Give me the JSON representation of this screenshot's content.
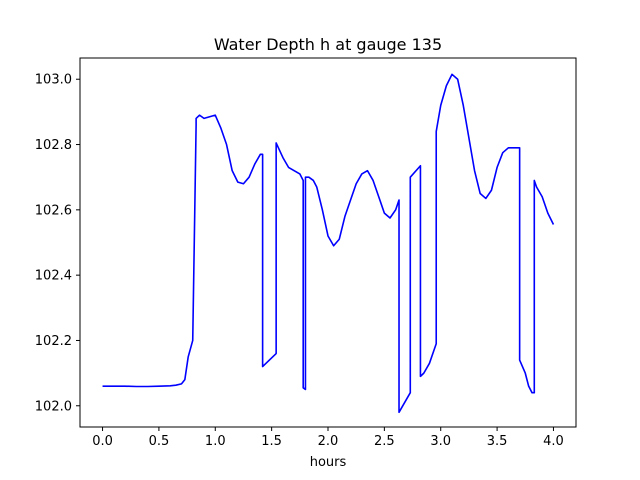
{
  "chart_data": {
    "type": "line",
    "title": "Water Depth h at gauge 135",
    "xlabel": "hours",
    "ylabel": "",
    "xlim": [
      -0.2,
      4.2
    ],
    "ylim": [
      101.935,
      103.065
    ],
    "xticks": [
      0.0,
      0.5,
      1.0,
      1.5,
      2.0,
      2.5,
      3.0,
      3.5,
      4.0
    ],
    "xtick_labels": [
      "0.0",
      "0.5",
      "1.0",
      "1.5",
      "2.0",
      "2.5",
      "3.0",
      "3.5",
      "4.0"
    ],
    "yticks": [
      102.0,
      102.2,
      102.4,
      102.6,
      102.8,
      103.0
    ],
    "ytick_labels": [
      "102.0",
      "102.2",
      "102.4",
      "102.6",
      "102.8",
      "103.0"
    ],
    "grid": false,
    "line_color": "#0000ff",
    "series": [
      {
        "x": [
          0.0,
          0.2,
          0.3,
          0.4,
          0.5,
          0.6,
          0.65,
          0.7,
          0.73,
          0.76,
          0.8,
          0.83,
          0.83,
          0.86,
          0.9,
          0.95,
          1.0,
          1.05,
          1.1,
          1.15,
          1.2,
          1.25,
          1.3,
          1.35,
          1.4,
          1.42,
          1.42,
          1.54,
          1.54,
          1.6,
          1.65,
          1.7,
          1.75,
          1.78,
          1.78,
          1.8,
          1.8,
          1.83,
          1.87,
          1.9,
          1.95,
          2.0,
          2.05,
          2.1,
          2.15,
          2.2,
          2.25,
          2.3,
          2.35,
          2.4,
          2.45,
          2.5,
          2.55,
          2.6,
          2.63,
          2.63,
          2.73,
          2.73,
          2.82,
          2.82,
          2.85,
          2.9,
          2.94,
          2.96,
          2.96,
          3.0,
          3.05,
          3.1,
          3.15,
          3.2,
          3.25,
          3.3,
          3.35,
          3.4,
          3.45,
          3.5,
          3.55,
          3.6,
          3.65,
          3.7,
          3.7,
          3.75,
          3.78,
          3.81,
          3.83,
          3.83,
          3.85,
          3.9,
          3.95,
          4.0
        ],
        "y": [
          102.06,
          102.06,
          102.059,
          102.059,
          102.06,
          102.061,
          102.063,
          102.067,
          102.08,
          102.15,
          102.2,
          102.86,
          102.88,
          102.89,
          102.88,
          102.885,
          102.89,
          102.85,
          102.8,
          102.72,
          102.685,
          102.68,
          102.7,
          102.74,
          102.77,
          102.77,
          102.12,
          102.16,
          102.805,
          102.76,
          102.73,
          102.72,
          102.71,
          102.69,
          102.055,
          102.05,
          102.7,
          102.7,
          102.69,
          102.67,
          102.6,
          102.52,
          102.49,
          102.51,
          102.58,
          102.63,
          102.68,
          102.71,
          102.72,
          102.69,
          102.64,
          102.59,
          102.575,
          102.6,
          102.63,
          101.98,
          102.04,
          102.7,
          102.735,
          102.09,
          102.1,
          102.13,
          102.17,
          102.19,
          102.84,
          102.92,
          102.98,
          103.015,
          103.0,
          102.92,
          102.82,
          102.72,
          102.65,
          102.635,
          102.66,
          102.73,
          102.775,
          102.79,
          102.79,
          102.79,
          102.14,
          102.1,
          102.06,
          102.04,
          102.04,
          102.69,
          102.67,
          102.64,
          102.59,
          102.555
        ]
      }
    ]
  }
}
